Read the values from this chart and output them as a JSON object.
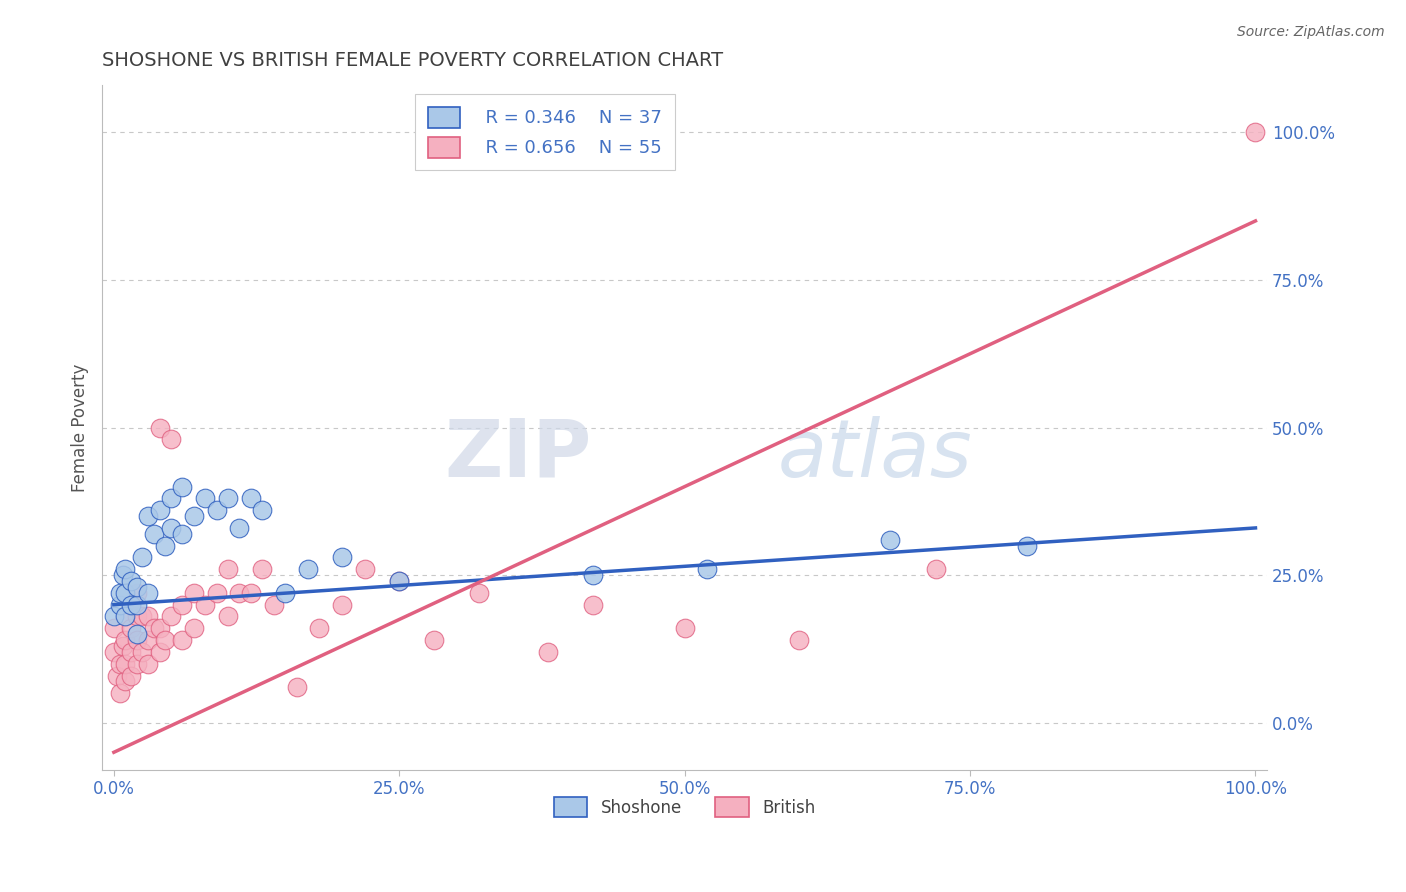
{
  "title": "SHOSHONE VS BRITISH FEMALE POVERTY CORRELATION CHART",
  "source": "Source: ZipAtlas.com",
  "ylabel": "Female Poverty",
  "watermark_zip": "ZIP",
  "watermark_atlas": "atlas",
  "shoshone_R": 0.346,
  "shoshone_N": 37,
  "british_R": 0.656,
  "british_N": 55,
  "shoshone_color": "#aac8e8",
  "british_color": "#f5b0c0",
  "shoshone_line_color": "#3060c0",
  "british_line_color": "#e06080",
  "legend_R_color": "#4472C4",
  "legend_N_color": "#E84040",
  "background_color": "#ffffff",
  "grid_color": "#c8c8c8",
  "title_color": "#404040",
  "xlim": [
    -0.01,
    1.01
  ],
  "ylim": [
    -0.08,
    1.08
  ],
  "shoshone_line_x0": 0.0,
  "shoshone_line_y0": 0.2,
  "shoshone_line_x1": 1.0,
  "shoshone_line_y1": 0.33,
  "british_line_x0": 0.0,
  "british_line_y0": -0.05,
  "british_line_x1": 1.0,
  "british_line_y1": 0.85,
  "shoshone_x": [
    0.0,
    0.005,
    0.005,
    0.008,
    0.01,
    0.01,
    0.01,
    0.015,
    0.015,
    0.02,
    0.02,
    0.02,
    0.025,
    0.03,
    0.03,
    0.035,
    0.04,
    0.045,
    0.05,
    0.05,
    0.06,
    0.06,
    0.07,
    0.08,
    0.09,
    0.1,
    0.11,
    0.12,
    0.13,
    0.15,
    0.17,
    0.2,
    0.25,
    0.42,
    0.52,
    0.68,
    0.8
  ],
  "shoshone_y": [
    0.18,
    0.2,
    0.22,
    0.25,
    0.18,
    0.22,
    0.26,
    0.2,
    0.24,
    0.15,
    0.2,
    0.23,
    0.28,
    0.22,
    0.35,
    0.32,
    0.36,
    0.3,
    0.33,
    0.38,
    0.32,
    0.4,
    0.35,
    0.38,
    0.36,
    0.38,
    0.33,
    0.38,
    0.36,
    0.22,
    0.26,
    0.28,
    0.24,
    0.25,
    0.26,
    0.31,
    0.3
  ],
  "british_x": [
    0.0,
    0.0,
    0.003,
    0.005,
    0.005,
    0.008,
    0.01,
    0.01,
    0.01,
    0.01,
    0.015,
    0.015,
    0.015,
    0.015,
    0.02,
    0.02,
    0.02,
    0.02,
    0.025,
    0.025,
    0.03,
    0.03,
    0.03,
    0.035,
    0.04,
    0.04,
    0.04,
    0.045,
    0.05,
    0.05,
    0.06,
    0.06,
    0.07,
    0.07,
    0.08,
    0.09,
    0.1,
    0.1,
    0.11,
    0.12,
    0.13,
    0.14,
    0.16,
    0.18,
    0.2,
    0.22,
    0.25,
    0.28,
    0.32,
    0.38,
    0.42,
    0.5,
    0.6,
    0.72,
    1.0
  ],
  "british_y": [
    0.12,
    0.16,
    0.08,
    0.05,
    0.1,
    0.13,
    0.07,
    0.1,
    0.14,
    0.18,
    0.08,
    0.12,
    0.16,
    0.2,
    0.1,
    0.14,
    0.18,
    0.22,
    0.12,
    0.18,
    0.1,
    0.14,
    0.18,
    0.16,
    0.12,
    0.16,
    0.5,
    0.14,
    0.18,
    0.48,
    0.14,
    0.2,
    0.16,
    0.22,
    0.2,
    0.22,
    0.18,
    0.26,
    0.22,
    0.22,
    0.26,
    0.2,
    0.06,
    0.16,
    0.2,
    0.26,
    0.24,
    0.14,
    0.22,
    0.12,
    0.2,
    0.16,
    0.14,
    0.26,
    1.0
  ]
}
